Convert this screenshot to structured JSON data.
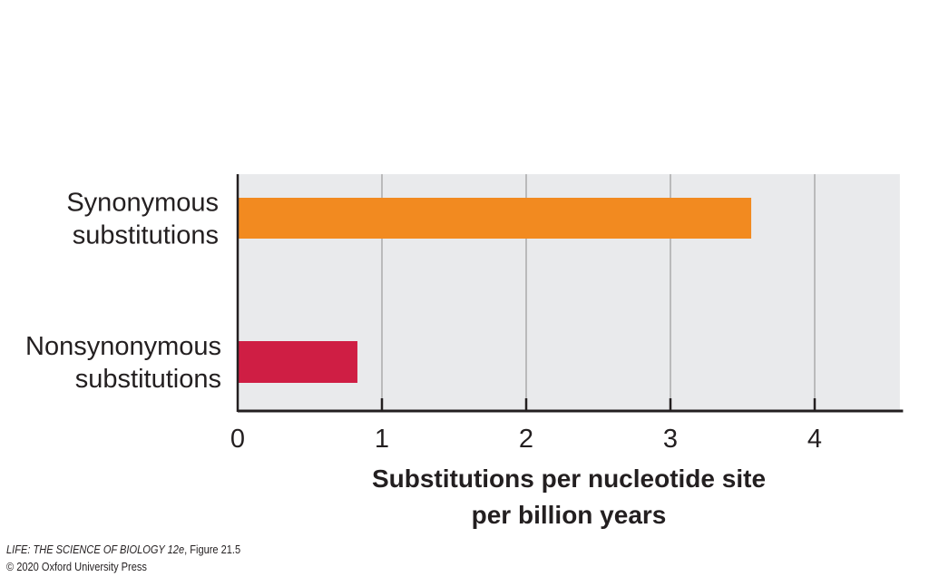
{
  "chart_data": {
    "type": "bar",
    "orientation": "horizontal",
    "categories": [
      [
        "Synonymous",
        "substitutions"
      ],
      [
        "Nonsynonymous",
        "substitutions"
      ]
    ],
    "values": [
      3.56,
      0.83
    ],
    "colors": [
      "#f28a20",
      "#cf1e44"
    ],
    "xlabel": [
      "Substitutions per nucleotide site",
      "per billion years"
    ],
    "xticks": [
      "0",
      "1",
      "2",
      "3",
      "4"
    ],
    "xlim": [
      0,
      4.6
    ],
    "grid": "vertical",
    "background": "#e9eaec"
  },
  "credit": {
    "line1_italic": "LIFE: THE SCIENCE OF BIOLOGY 12e",
    "line1_rest": ", Figure 21.5",
    "line2": "© 2020 Oxford University Press"
  }
}
